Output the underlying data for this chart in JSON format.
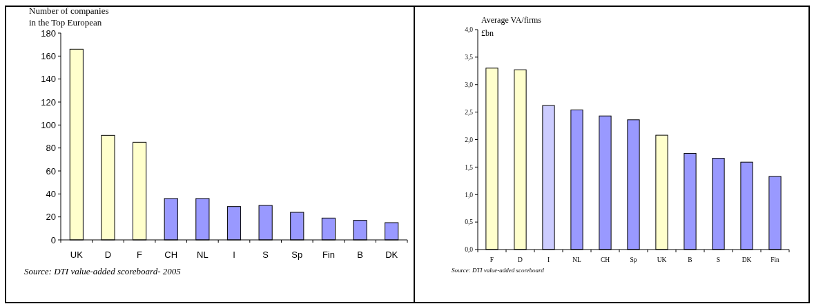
{
  "chart_data": [
    {
      "type": "bar",
      "ylabel": "Number of companies\nin the Top European",
      "categories": [
        "UK",
        "D",
        "F",
        "CH",
        "NL",
        "I",
        "S",
        "Sp",
        "Fin",
        "B",
        "DK"
      ],
      "values": [
        166,
        91,
        85,
        36,
        36,
        29,
        30,
        24,
        19,
        17,
        15
      ],
      "colors": [
        "#ffffcc",
        "#ffffcc",
        "#ffffcc",
        "#9999ff",
        "#9999ff",
        "#9999ff",
        "#9999ff",
        "#9999ff",
        "#9999ff",
        "#9999ff",
        "#9999ff"
      ],
      "ylim": [
        0,
        180
      ],
      "yticks": [
        0,
        20,
        40,
        60,
        80,
        100,
        120,
        140,
        160,
        180
      ],
      "grid": false,
      "annotations": [
        "Source: DTI value-added scoreboard- 2005"
      ]
    },
    {
      "type": "bar",
      "ylabel": "Average VA/firms\n£bn",
      "categories": [
        "F",
        "D",
        "I",
        "NL",
        "CH",
        "Sp",
        "UK",
        "B",
        "S",
        "DK",
        "Fin"
      ],
      "values": [
        3.3,
        3.27,
        2.62,
        2.54,
        2.43,
        2.36,
        2.08,
        1.75,
        1.66,
        1.59,
        1.33
      ],
      "colors": [
        "#ffffcc",
        "#ffffcc",
        "#ccccff",
        "#9999ff",
        "#9999ff",
        "#9999ff",
        "#ffffcc",
        "#9999ff",
        "#9999ff",
        "#9999ff",
        "#9999ff"
      ],
      "ylim": [
        0,
        4
      ],
      "yticks": [
        {
          "value": 0,
          "label": "0,0"
        },
        {
          "value": 0.5,
          "label": "0,5"
        },
        {
          "value": 1,
          "label": "1,0"
        },
        {
          "value": 1.5,
          "label": "1,5"
        },
        {
          "value": 2,
          "label": "2,0"
        },
        {
          "value": 2.5,
          "label": "2,5"
        },
        {
          "value": 3,
          "label": "3,0"
        },
        {
          "value": 3.5,
          "label": "3,5"
        },
        {
          "value": 4,
          "label": "4,0"
        }
      ],
      "grid": false,
      "annotations": [
        "Source: DTI value-added scoreboard"
      ]
    }
  ]
}
